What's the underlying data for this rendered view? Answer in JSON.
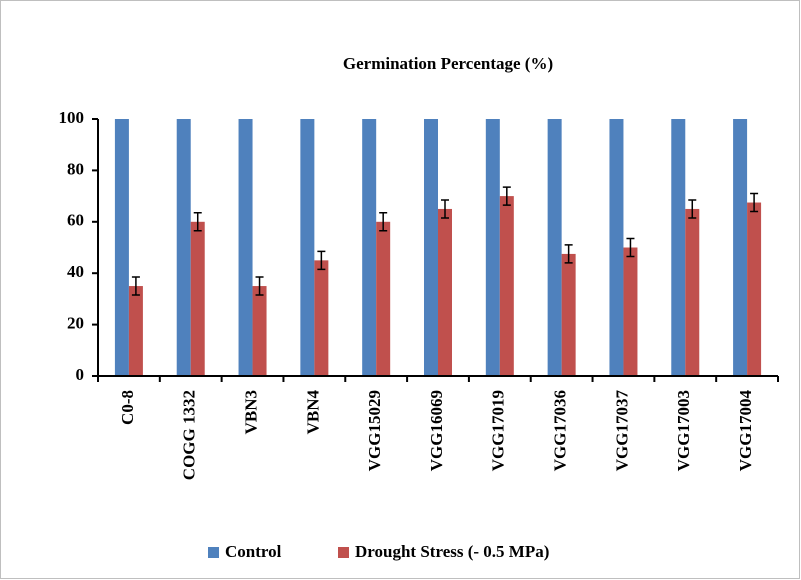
{
  "chart_data": {
    "type": "bar",
    "title": "Germination Percentage (%)",
    "categories": [
      "C0-8",
      "COGG 1332",
      "VBN3",
      "VBN4",
      "VGG15029",
      "VGG16069",
      "VGG17019",
      "VGG17036",
      "VGG17037",
      "VGG17003",
      "VGG17004"
    ],
    "series": [
      {
        "name": "Control",
        "color": "#4f81bd",
        "values": [
          100,
          100,
          100,
          100,
          100,
          100,
          100,
          100,
          100,
          100,
          100
        ]
      },
      {
        "name": "Drought Stress (- 0.5 MPa)",
        "color": "#c0504d",
        "values": [
          35,
          60,
          35,
          45,
          60,
          65,
          70,
          47.5,
          50,
          65,
          67.5
        ],
        "errors": [
          3.5,
          3.5,
          3.5,
          3.5,
          3.5,
          3.5,
          3.5,
          3.5,
          3.5,
          3.5,
          3.5
        ]
      }
    ],
    "ylim": [
      0,
      100
    ],
    "yticks": [
      0,
      20,
      40,
      60,
      80,
      100
    ],
    "grid": false,
    "legend": "bottom"
  }
}
